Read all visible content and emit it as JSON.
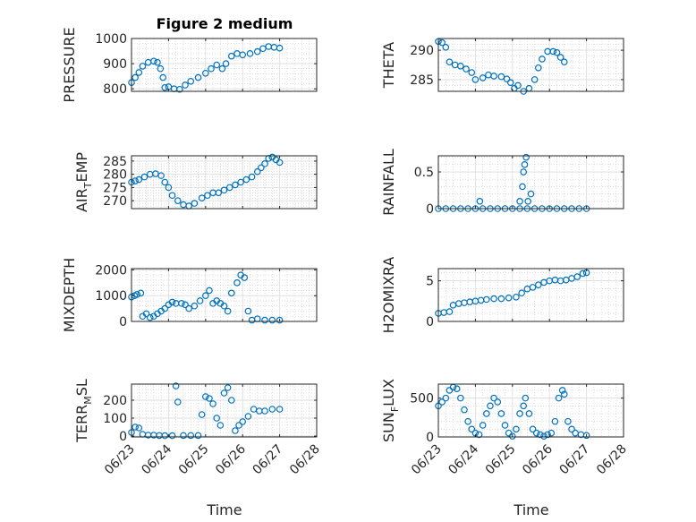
{
  "figure": {
    "title": "Figure 2 medium",
    "xlabel": "Time",
    "marker_color": "#0072BD",
    "grid_color": "#c8c8c8",
    "x_tick_labels": [
      "06/23",
      "06/24",
      "06/25",
      "06/26",
      "06/27",
      "06/28"
    ]
  },
  "chart_data": [
    {
      "type": "scatter",
      "name": "PRESSURE",
      "ylabel": "PRESSURE",
      "ylim": [
        790,
        1000
      ],
      "yticks": [
        800,
        900,
        1000
      ],
      "xlim": [
        0,
        5
      ],
      "grid": true,
      "points": [
        [
          0,
          825
        ],
        [
          0.1,
          845
        ],
        [
          0.2,
          865
        ],
        [
          0.3,
          890
        ],
        [
          0.45,
          905
        ],
        [
          0.6,
          910
        ],
        [
          0.7,
          905
        ],
        [
          0.78,
          880
        ],
        [
          0.85,
          845
        ],
        [
          0.9,
          805
        ],
        [
          1.0,
          808
        ],
        [
          1.15,
          800
        ],
        [
          1.3,
          798
        ],
        [
          1.45,
          815
        ],
        [
          1.6,
          830
        ],
        [
          1.8,
          845
        ],
        [
          2.0,
          862
        ],
        [
          2.15,
          880
        ],
        [
          2.3,
          895
        ],
        [
          2.45,
          880
        ],
        [
          2.55,
          900
        ],
        [
          2.7,
          930
        ],
        [
          2.85,
          940
        ],
        [
          3.0,
          935
        ],
        [
          3.2,
          940
        ],
        [
          3.4,
          948
        ],
        [
          3.55,
          960
        ],
        [
          3.7,
          968
        ],
        [
          3.85,
          965
        ],
        [
          4.0,
          962
        ]
      ]
    },
    {
      "type": "scatter",
      "name": "THETA",
      "ylabel": "THETA",
      "ylim": [
        283,
        292
      ],
      "yticks": [
        285,
        290
      ],
      "xlim": [
        0,
        5
      ],
      "grid": true,
      "points": [
        [
          0,
          291.5
        ],
        [
          0.1,
          291.3
        ],
        [
          0.2,
          290.5
        ],
        [
          0.3,
          288
        ],
        [
          0.45,
          287.5
        ],
        [
          0.6,
          287.3
        ],
        [
          0.75,
          286.8
        ],
        [
          0.9,
          286.2
        ],
        [
          1.0,
          285
        ],
        [
          1.2,
          285.3
        ],
        [
          1.35,
          285.8
        ],
        [
          1.5,
          285.6
        ],
        [
          1.7,
          285.5
        ],
        [
          1.85,
          285.1
        ],
        [
          1.95,
          284.5
        ],
        [
          2.05,
          283.5
        ],
        [
          2.15,
          284
        ],
        [
          2.3,
          283
        ],
        [
          2.45,
          283.5
        ],
        [
          2.6,
          285
        ],
        [
          2.7,
          287
        ],
        [
          2.8,
          288.5
        ],
        [
          2.95,
          289.8
        ],
        [
          3.1,
          289.8
        ],
        [
          3.2,
          289.6
        ],
        [
          3.3,
          288.8
        ],
        [
          3.4,
          288
        ]
      ]
    },
    {
      "type": "scatter",
      "name": "AIR_TEMP",
      "ylabel": "AIR_TEMP",
      "ylim": [
        267,
        287
      ],
      "yticks": [
        270,
        275,
        280,
        285
      ],
      "xlim": [
        0,
        5
      ],
      "grid": true,
      "points": [
        [
          0,
          277
        ],
        [
          0.1,
          277.5
        ],
        [
          0.2,
          278
        ],
        [
          0.35,
          279
        ],
        [
          0.5,
          280
        ],
        [
          0.65,
          280.2
        ],
        [
          0.8,
          279.5
        ],
        [
          0.9,
          277
        ],
        [
          1.0,
          275
        ],
        [
          1.1,
          272
        ],
        [
          1.25,
          270
        ],
        [
          1.4,
          268.5
        ],
        [
          1.55,
          268
        ],
        [
          1.7,
          269
        ],
        [
          1.9,
          271
        ],
        [
          2.05,
          272
        ],
        [
          2.2,
          273
        ],
        [
          2.35,
          273
        ],
        [
          2.5,
          274
        ],
        [
          2.65,
          275
        ],
        [
          2.8,
          276
        ],
        [
          2.95,
          277
        ],
        [
          3.1,
          278
        ],
        [
          3.25,
          279
        ],
        [
          3.4,
          281
        ],
        [
          3.5,
          282.5
        ],
        [
          3.6,
          284
        ],
        [
          3.7,
          286
        ],
        [
          3.8,
          286.5
        ],
        [
          3.9,
          285.5
        ],
        [
          4.0,
          284.5
        ]
      ]
    },
    {
      "type": "scatter",
      "name": "RAINFALL",
      "ylabel": "RAINFALL",
      "ylim": [
        0,
        0.72
      ],
      "yticks": [
        0,
        0.5
      ],
      "xlim": [
        0,
        5
      ],
      "grid": true,
      "points": [
        [
          0,
          0
        ],
        [
          0.2,
          0
        ],
        [
          0.4,
          0
        ],
        [
          0.6,
          0
        ],
        [
          0.8,
          0
        ],
        [
          1.0,
          0
        ],
        [
          1.2,
          0
        ],
        [
          1.4,
          0
        ],
        [
          1.6,
          0
        ],
        [
          1.8,
          0
        ],
        [
          2.0,
          0
        ],
        [
          2.2,
          0
        ],
        [
          2.4,
          0
        ],
        [
          2.6,
          0
        ],
        [
          2.8,
          0
        ],
        [
          3.0,
          0
        ],
        [
          3.2,
          0
        ],
        [
          3.4,
          0
        ],
        [
          3.6,
          0
        ],
        [
          3.8,
          0
        ],
        [
          4.0,
          0
        ],
        [
          1.12,
          0.1
        ],
        [
          2.2,
          0.1
        ],
        [
          2.27,
          0.3
        ],
        [
          2.3,
          0.5
        ],
        [
          2.33,
          0.6
        ],
        [
          2.37,
          0.7
        ],
        [
          2.42,
          0.1
        ],
        [
          2.5,
          0.2
        ]
      ]
    },
    {
      "type": "scatter",
      "name": "MIXDEPTH",
      "ylabel": "MIXDEPTH",
      "ylim": [
        0,
        2050
      ],
      "yticks": [
        0,
        1000,
        2000
      ],
      "xlim": [
        0,
        5
      ],
      "grid": true,
      "points": [
        [
          0,
          950
        ],
        [
          0.08,
          1000
        ],
        [
          0.15,
          1050
        ],
        [
          0.25,
          1100
        ],
        [
          0.3,
          200
        ],
        [
          0.4,
          300
        ],
        [
          0.5,
          150
        ],
        [
          0.6,
          200
        ],
        [
          0.7,
          300
        ],
        [
          0.8,
          400
        ],
        [
          0.9,
          500
        ],
        [
          1.0,
          650
        ],
        [
          1.1,
          750
        ],
        [
          1.2,
          700
        ],
        [
          1.35,
          700
        ],
        [
          1.45,
          650
        ],
        [
          1.55,
          500
        ],
        [
          1.7,
          600
        ],
        [
          1.85,
          800
        ],
        [
          2.0,
          1000
        ],
        [
          2.1,
          1200
        ],
        [
          2.2,
          700
        ],
        [
          2.3,
          800
        ],
        [
          2.4,
          700
        ],
        [
          2.5,
          600
        ],
        [
          2.6,
          400
        ],
        [
          2.7,
          1100
        ],
        [
          2.85,
          1500
        ],
        [
          2.95,
          1800
        ],
        [
          3.05,
          1700
        ],
        [
          3.15,
          400
        ],
        [
          3.25,
          50
        ],
        [
          3.4,
          100
        ],
        [
          3.6,
          50
        ],
        [
          3.8,
          50
        ],
        [
          4.0,
          50
        ]
      ]
    },
    {
      "type": "scatter",
      "name": "H2OMIXRA",
      "ylabel": "H2OMIXRA",
      "ylim": [
        0,
        6.5
      ],
      "yticks": [
        0,
        5
      ],
      "xlim": [
        0,
        5
      ],
      "grid": true,
      "points": [
        [
          0,
          1
        ],
        [
          0.15,
          1.1
        ],
        [
          0.3,
          1.2
        ],
        [
          0.4,
          2
        ],
        [
          0.55,
          2.2
        ],
        [
          0.7,
          2.3
        ],
        [
          0.85,
          2.4
        ],
        [
          1.0,
          2.5
        ],
        [
          1.15,
          2.6
        ],
        [
          1.3,
          2.7
        ],
        [
          1.5,
          2.8
        ],
        [
          1.7,
          2.8
        ],
        [
          1.9,
          2.9
        ],
        [
          2.1,
          3
        ],
        [
          2.25,
          3.5
        ],
        [
          2.4,
          4
        ],
        [
          2.55,
          4.2
        ],
        [
          2.7,
          4.5
        ],
        [
          2.85,
          4.8
        ],
        [
          3.0,
          5
        ],
        [
          3.15,
          5.1
        ],
        [
          3.3,
          5
        ],
        [
          3.45,
          5.1
        ],
        [
          3.6,
          5.3
        ],
        [
          3.75,
          5.5
        ],
        [
          3.9,
          5.9
        ],
        [
          4.0,
          6
        ]
      ]
    },
    {
      "type": "scatter",
      "name": "TERR_MSL",
      "ylabel": "TERR_MSL",
      "ylim": [
        -5,
        290
      ],
      "yticks": [
        0,
        100,
        200
      ],
      "xlim": [
        0,
        5
      ],
      "grid": true,
      "points": [
        [
          0,
          20
        ],
        [
          0.1,
          50
        ],
        [
          0.2,
          45
        ],
        [
          0.3,
          10
        ],
        [
          0.45,
          5
        ],
        [
          0.6,
          5
        ],
        [
          0.75,
          3
        ],
        [
          0.9,
          2
        ],
        [
          1.1,
          2
        ],
        [
          1.2,
          280
        ],
        [
          1.25,
          190
        ],
        [
          1.4,
          3
        ],
        [
          1.6,
          3
        ],
        [
          1.8,
          3
        ],
        [
          1.9,
          120
        ],
        [
          2.0,
          220
        ],
        [
          2.1,
          210
        ],
        [
          2.2,
          180
        ],
        [
          2.3,
          100
        ],
        [
          2.4,
          60
        ],
        [
          2.5,
          240
        ],
        [
          2.6,
          270
        ],
        [
          2.7,
          200
        ],
        [
          2.8,
          30
        ],
        [
          2.9,
          60
        ],
        [
          3.0,
          80
        ],
        [
          3.15,
          110
        ],
        [
          3.3,
          150
        ],
        [
          3.45,
          140
        ],
        [
          3.6,
          140
        ],
        [
          3.8,
          150
        ],
        [
          4.0,
          150
        ]
      ]
    },
    {
      "type": "scatter",
      "name": "SUN_FLUX",
      "ylabel": "SUN_FLUX",
      "ylim": [
        0,
        680
      ],
      "yticks": [
        0,
        500
      ],
      "xlim": [
        0,
        5
      ],
      "grid": true,
      "points": [
        [
          0,
          400
        ],
        [
          0.1,
          450
        ],
        [
          0.2,
          500
        ],
        [
          0.3,
          600
        ],
        [
          0.4,
          640
        ],
        [
          0.5,
          620
        ],
        [
          0.6,
          500
        ],
        [
          0.7,
          350
        ],
        [
          0.8,
          200
        ],
        [
          0.9,
          100
        ],
        [
          1.0,
          50
        ],
        [
          1.1,
          30
        ],
        [
          1.2,
          150
        ],
        [
          1.3,
          300
        ],
        [
          1.4,
          400
        ],
        [
          1.5,
          500
        ],
        [
          1.6,
          450
        ],
        [
          1.7,
          300
        ],
        [
          1.8,
          150
        ],
        [
          1.9,
          50
        ],
        [
          2.0,
          10
        ],
        [
          2.1,
          100
        ],
        [
          2.2,
          300
        ],
        [
          2.3,
          400
        ],
        [
          2.35,
          500
        ],
        [
          2.45,
          300
        ],
        [
          2.55,
          100
        ],
        [
          2.65,
          50
        ],
        [
          2.75,
          30
        ],
        [
          2.85,
          10
        ],
        [
          2.95,
          30
        ],
        [
          3.05,
          50
        ],
        [
          3.15,
          200
        ],
        [
          3.25,
          500
        ],
        [
          3.35,
          600
        ],
        [
          3.4,
          550
        ],
        [
          3.5,
          200
        ],
        [
          3.6,
          100
        ],
        [
          3.7,
          50
        ],
        [
          3.85,
          30
        ],
        [
          4.0,
          20
        ]
      ]
    }
  ]
}
